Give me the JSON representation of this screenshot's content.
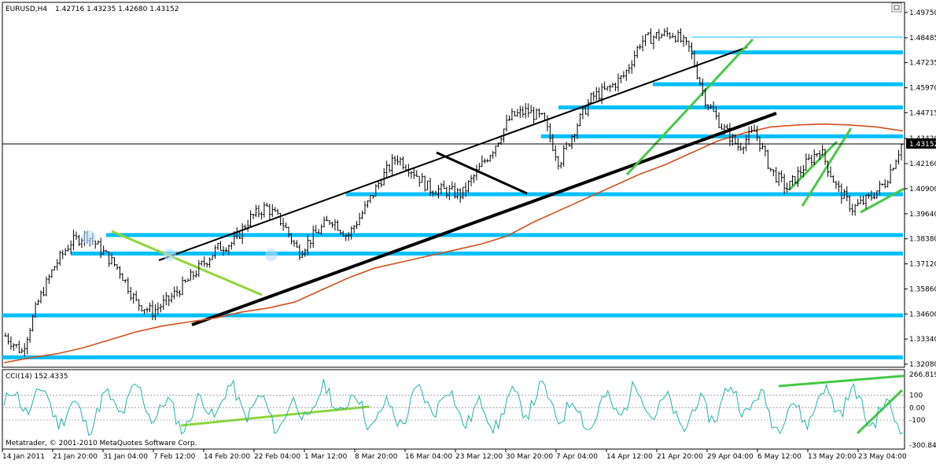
{
  "chart_data": {
    "type": "line",
    "symbol": "EURUSD,H4",
    "ohlc": "1.42716 1.43235 1.42680 1.43152",
    "current_price": "1.43152",
    "copyright": "Metatrader, © 2001-2010 MetaQuotes Software Corp.",
    "price_axis": {
      "ylim": [
        1.3208,
        1.4975
      ],
      "ticks": [
        "1.49750",
        "1.48485",
        "1.47235",
        "1.45970",
        "1.44715",
        "1.43420",
        "1.42160",
        "1.40900",
        "1.39640",
        "1.38380",
        "1.37120",
        "1.35860",
        "1.34600",
        "1.33340",
        "1.32080"
      ]
    },
    "time_axis": {
      "labels": [
        "14 Jan 2011",
        "21 Jan 20:00",
        "31 Jan 04:00",
        "7 Feb 12:00",
        "14 Feb 20:00",
        "22 Feb 04:00",
        "1 Mar 12:00",
        "8 Mar 20:00",
        "16 Mar 04:00",
        "23 Mar 12:00",
        "30 Mar 20:00",
        "7 Apr 04:00",
        "14 Apr 12:00",
        "21 Apr 20:00",
        "29 Apr 04:00",
        "6 May 12:00",
        "13 May 20:00",
        "23 May 04:00"
      ]
    },
    "series": [
      {
        "values": [
          1.335,
          1.327,
          1.352,
          1.37,
          1.382,
          1.386,
          1.377,
          1.368,
          1.352,
          1.347,
          1.353,
          1.361,
          1.37,
          1.379,
          1.382,
          1.394,
          1.4,
          1.392,
          1.377,
          1.386,
          1.394,
          1.385,
          1.398,
          1.413,
          1.425,
          1.418,
          1.409,
          1.408,
          1.406,
          1.418,
          1.43,
          1.445,
          1.448,
          1.444,
          1.422,
          1.44,
          1.455,
          1.459,
          1.466,
          1.483,
          1.486,
          1.487,
          1.479,
          1.453,
          1.44,
          1.43,
          1.438,
          1.418,
          1.409,
          1.42,
          1.429,
          1.41,
          1.399,
          1.404,
          1.412,
          1.431
        ],
        "color": "#000000"
      },
      {
        "values": [
          1.3215,
          1.324,
          1.326,
          1.329,
          1.333,
          1.337,
          1.34,
          1.342,
          1.344,
          1.347,
          1.349,
          1.352,
          1.358,
          1.364,
          1.369,
          1.372,
          1.375,
          1.378,
          1.381,
          1.385,
          1.392,
          1.398,
          1.404,
          1.41,
          1.416,
          1.421,
          1.427,
          1.433,
          1.437,
          1.44,
          1.441,
          1.4415,
          1.441,
          1.44,
          1.438
        ],
        "color": "#d2501e"
      }
    ],
    "horizontal_levels": [
      1.4852,
      1.4775,
      1.4615,
      1.4498,
      1.4353,
      1.4062,
      1.3857,
      1.3764,
      1.3453,
      1.3242
    ],
    "level_color": "#00bfff",
    "cci": {
      "label": "CCI(14) 152.4335",
      "ylim": [
        -300.845,
        266.819
      ],
      "ticks": [
        "266.819",
        "100",
        "0.00",
        "-100",
        "-300.845"
      ],
      "line_color": "#20b2aa"
    }
  }
}
